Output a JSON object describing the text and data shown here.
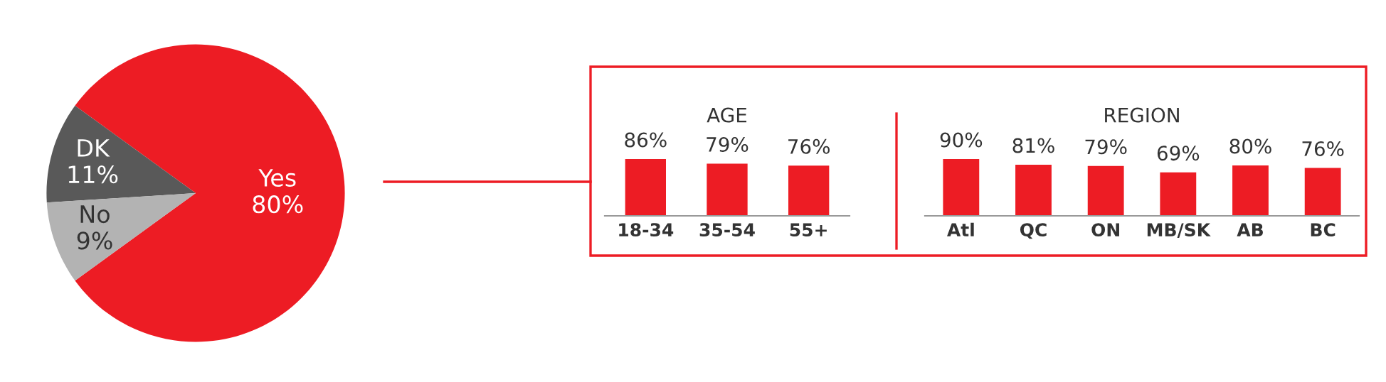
{
  "chart_data": [
    {
      "type": "pie",
      "categories": [
        "Yes",
        "DK",
        "No"
      ],
      "values": [
        80,
        11,
        9
      ],
      "colors": [
        "#ed1c24",
        "#595959",
        "#b3b3b3"
      ],
      "value_labels": [
        "80%",
        "11%",
        "9%"
      ]
    },
    {
      "type": "bar",
      "title": "AGE",
      "categories": [
        "18-34",
        "35-54",
        "55+"
      ],
      "values": [
        86,
        79,
        76
      ],
      "color": "#ed1c24",
      "value_labels": [
        "86%",
        "79%",
        "76%"
      ]
    },
    {
      "type": "bar",
      "title": "REGION",
      "categories": [
        "Atl",
        "QC",
        "ON",
        "MB/SK",
        "AB",
        "BC"
      ],
      "values": [
        90,
        81,
        79,
        69,
        80,
        76
      ],
      "color": "#ed1c24",
      "value_labels": [
        "90%",
        "81%",
        "79%",
        "69%",
        "80%",
        "76%"
      ]
    }
  ]
}
